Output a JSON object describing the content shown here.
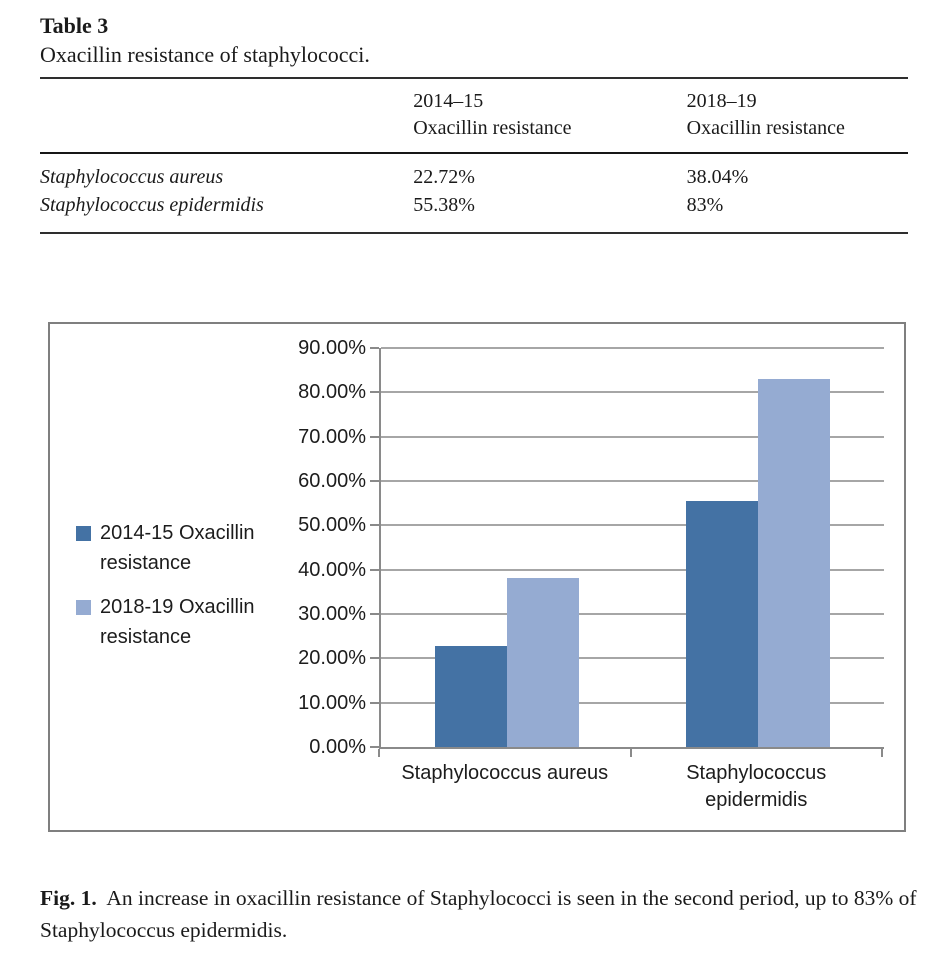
{
  "table": {
    "label": "Table 3",
    "caption": "Oxacillin resistance of staphylococci.",
    "header": {
      "col2": [
        "2014–15",
        "Oxacillin resistance"
      ],
      "col3": [
        "2018–19",
        "Oxacillin resistance"
      ]
    },
    "rows": [
      {
        "species": "Staphylococcus aureus",
        "v1": "22.72%",
        "v2": "38.04%"
      },
      {
        "species": "Staphylococcus epidermidis",
        "v1": "55.38%",
        "v2": "83%"
      }
    ]
  },
  "chart_data": {
    "type": "bar",
    "categories": [
      "Staphylococcus aureus",
      "Staphylococcus epidermidis"
    ],
    "series": [
      {
        "name": "2014-15 Oxacillin resistance",
        "values": [
          22.72,
          55.38
        ],
        "color": "#4472a4"
      },
      {
        "name": "2018-19 Oxacillin resistance",
        "values": [
          38.04,
          83.0
        ],
        "color": "#95abd2"
      }
    ],
    "ylim": [
      0,
      90
    ],
    "ytick_step": 10,
    "ytick_suffix": "%",
    "ytick_decimals": 2,
    "grid": true,
    "legend_position": "left",
    "gridline_color": "#a6a6a6",
    "axis_color": "#8a8a8a",
    "frame_border_color": "#7f7f7f"
  },
  "figure": {
    "caption_label": "Fig. 1.",
    "caption_text": "An increase in oxacillin resistance of Staphylococci is seen in the second period, up to 83% of Staphylococcus epidermidis."
  }
}
